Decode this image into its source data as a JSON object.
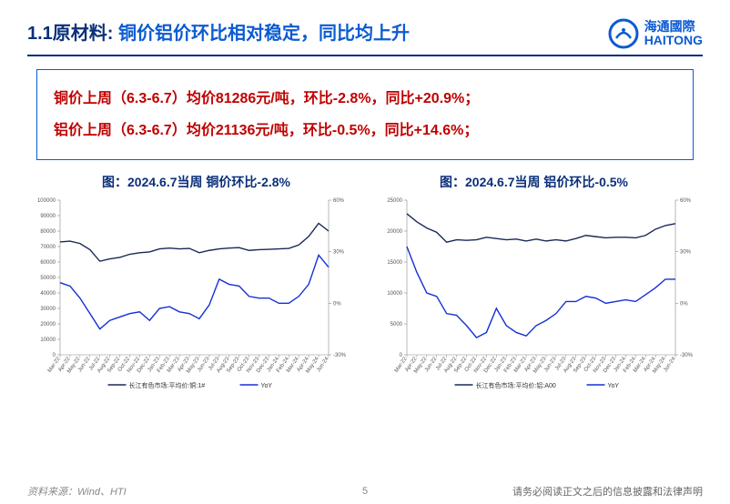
{
  "header": {
    "section": "1.1原材料:",
    "title_rest": " 铜价铝价环比相对稳定，同比均上升",
    "logo_cn": "海通國際",
    "logo_en": "HAITONG"
  },
  "callout": {
    "line1": "铜价上周（6.3-6.7）均价81286元/吨，环比-2.8%，同比+20.9%；",
    "line2": "铝价上周（6.3-6.7）均价21136元/吨，环比-0.5%，同比+14.6%；"
  },
  "chart_left": {
    "title": "图：2024.6.7当周 铜价环比-2.8%",
    "type": "dual-axis-line",
    "lylabel": "",
    "rylabel": "",
    "l_ylim": [
      0,
      100000
    ],
    "l_ticks": [
      0,
      10000,
      20000,
      30000,
      40000,
      50000,
      60000,
      70000,
      80000,
      90000,
      100000
    ],
    "r_ylim": [
      -30,
      60
    ],
    "r_ticks": [
      -30,
      0,
      30,
      60
    ],
    "x_labels": [
      "Mar-22",
      "Apr-22",
      "May-22",
      "Jun-22",
      "Jul-22",
      "Aug-22",
      "Sep-22",
      "Oct-22",
      "Nov-22",
      "Dec-22",
      "Jan-23",
      "Feb-23",
      "Mar-23",
      "Apr-23",
      "May-23",
      "Jun-23",
      "Jul-23",
      "Aug-23",
      "Sep-23",
      "Oct-23",
      "Nov-23",
      "Dec-23",
      "Jan-24",
      "Feb-24",
      "Mar-24",
      "Apr-24",
      "May-24",
      "Jun-24"
    ],
    "series1": {
      "name": "长江有色市场:平均价:铜:1#",
      "color": "#192a56",
      "width": 1.4,
      "values": [
        73000,
        73500,
        72000,
        68000,
        60500,
        62000,
        63000,
        65000,
        66000,
        66500,
        68500,
        69000,
        68500,
        68800,
        66000,
        67500,
        68500,
        69000,
        69300,
        67500,
        68000,
        68200,
        68500,
        68800,
        71000,
        76500,
        85000,
        80000
      ]
    },
    "series2": {
      "name": "YoY",
      "color": "#1330d6",
      "width": 1.4,
      "values": [
        12,
        10,
        3,
        -6,
        -15,
        -10,
        -8,
        -6,
        -5,
        -10,
        -3,
        -2,
        -5,
        -6,
        -9,
        -1,
        14,
        11,
        10,
        4,
        3,
        3,
        0,
        0,
        4,
        11,
        28,
        21
      ]
    },
    "background_color": "#ffffff",
    "grid_color": "#e0e0e0",
    "axis_color": "#888888",
    "font_size": 6,
    "legend_fontsize": 7
  },
  "chart_right": {
    "title": "图：2024.6.7当周 铝价环比-0.5%",
    "type": "dual-axis-line",
    "l_ylim": [
      0,
      25000
    ],
    "l_ticks": [
      0,
      5000,
      10000,
      15000,
      20000,
      25000
    ],
    "r_ylim": [
      -30,
      60
    ],
    "r_ticks": [
      -30,
      0,
      30,
      60
    ],
    "x_labels": [
      "Mar-22",
      "Apr-22",
      "May-22",
      "Jun-22",
      "Jul-22",
      "Aug-22",
      "Sep-22",
      "Oct-22",
      "Nov-22",
      "Dec-22",
      "Jan-23",
      "Feb-23",
      "Mar-23",
      "Apr-23",
      "May-23",
      "Jun-23",
      "Jul-23",
      "Aug-23",
      "Sep-23",
      "Oct-23",
      "Nov-23",
      "Dec-23",
      "Jan-24",
      "Feb-24",
      "Mar-24",
      "Apr-24",
      "May-24",
      "Jun-24"
    ],
    "series1": {
      "name": "长江有色市场:平均价:铝:A00",
      "color": "#192a56",
      "width": 1.4,
      "values": [
        22800,
        21500,
        20500,
        19800,
        18200,
        18600,
        18500,
        18600,
        19000,
        18800,
        18600,
        18700,
        18400,
        18700,
        18400,
        18600,
        18400,
        18800,
        19300,
        19100,
        18900,
        19000,
        19000,
        18900,
        19300,
        20300,
        20900,
        21200
      ]
    },
    "series2": {
      "name": "YoY",
      "color": "#1330d6",
      "width": 1.4,
      "values": [
        33,
        18,
        6,
        4,
        -6,
        -7,
        -13,
        -20,
        -17,
        -3,
        -13,
        -17,
        -19,
        -13,
        -10,
        -6,
        1,
        1,
        4,
        3,
        0,
        1,
        2,
        1,
        5,
        9,
        14,
        14
      ]
    },
    "background_color": "#ffffff",
    "grid_color": "#e0e0e0",
    "axis_color": "#888888",
    "font_size": 6,
    "legend_fontsize": 7
  },
  "footer": {
    "source": "资料来源：Wind、HTI",
    "page": "5",
    "disclaimer": "请务必阅读正文之后的信息披露和法律声明"
  }
}
